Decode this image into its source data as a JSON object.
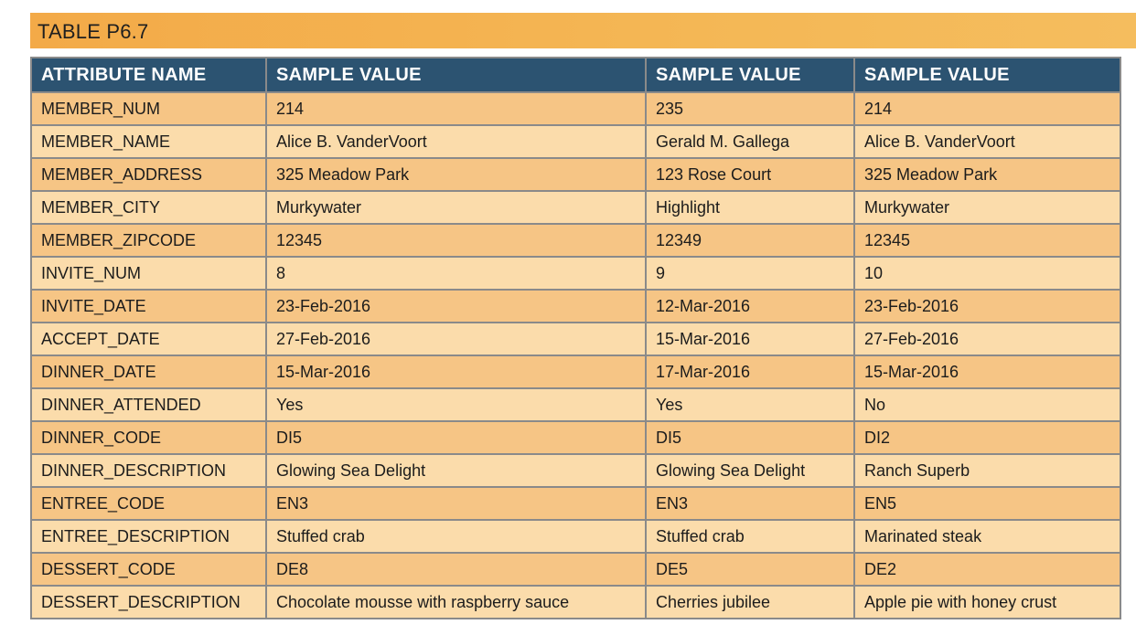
{
  "title": "TABLE P6.7",
  "colors": {
    "title_bar": "#f4b755",
    "header_bg": "#2c5371",
    "row_odd": "#f6c585",
    "row_even": "#fbdcab",
    "border": "#8a8a8a"
  },
  "headers": [
    "ATTRIBUTE NAME",
    "SAMPLE VALUE",
    "SAMPLE VALUE",
    "SAMPLE VALUE"
  ],
  "rows": [
    [
      "MEMBER_NUM",
      "214",
      "235",
      "214"
    ],
    [
      "MEMBER_NAME",
      "Alice B. VanderVoort",
      "Gerald M. Gallega",
      "Alice B. VanderVoort"
    ],
    [
      "MEMBER_ADDRESS",
      "325 Meadow Park",
      "123 Rose Court",
      "325 Meadow Park"
    ],
    [
      "MEMBER_CITY",
      "Murkywater",
      "Highlight",
      "Murkywater"
    ],
    [
      "MEMBER_ZIPCODE",
      "12345",
      "12349",
      "12345"
    ],
    [
      "INVITE_NUM",
      "8",
      "9",
      "10"
    ],
    [
      "INVITE_DATE",
      "23-Feb-2016",
      "12-Mar-2016",
      "23-Feb-2016"
    ],
    [
      "ACCEPT_DATE",
      "27-Feb-2016",
      "15-Mar-2016",
      "27-Feb-2016"
    ],
    [
      "DINNER_DATE",
      "15-Mar-2016",
      "17-Mar-2016",
      "15-Mar-2016"
    ],
    [
      "DINNER_ATTENDED",
      "Yes",
      "Yes",
      "No"
    ],
    [
      "DINNER_CODE",
      "DI5",
      "DI5",
      "DI2"
    ],
    [
      "DINNER_DESCRIPTION",
      "Glowing Sea Delight",
      "Glowing Sea Delight",
      "Ranch Superb"
    ],
    [
      "ENTREE_CODE",
      "EN3",
      "EN3",
      "EN5"
    ],
    [
      "ENTREE_DESCRIPTION",
      "Stuffed crab",
      "Stuffed crab",
      "Marinated steak"
    ],
    [
      "DESSERT_CODE",
      "DE8",
      "DE5",
      "DE2"
    ],
    [
      "DESSERT_DESCRIPTION",
      "Chocolate mousse with raspberry sauce",
      "Cherries jubilee",
      "Apple pie with honey crust"
    ]
  ]
}
